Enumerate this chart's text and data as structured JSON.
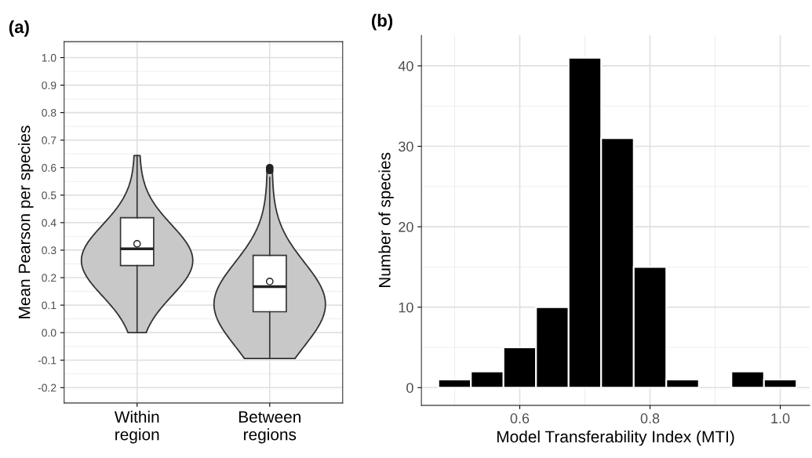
{
  "chart_data": [
    {
      "type": "box",
      "title": "(a)",
      "ylabel": "Mean Pearson per species",
      "categories": [
        "Within\nregion",
        "Between\nregions"
      ],
      "boxes": [
        {
          "low": 0.0,
          "q1": 0.244,
          "median": 0.305,
          "q3": 0.418,
          "high": 0.644,
          "mean": 0.323
        },
        {
          "low": -0.094,
          "q1": 0.076,
          "median": 0.167,
          "q3": 0.281,
          "high": 0.565,
          "mean": 0.186,
          "outliers": [
            0.6,
            0.59
          ]
        }
      ],
      "ylim": [
        -0.256,
        1.058
      ],
      "yticks": [
        -0.2,
        -0.1,
        {
          "value": 0.0,
          "label": "0.0"
        },
        0.1,
        0.2,
        0.3,
        0.4,
        0.5,
        0.6,
        0.7,
        0.8,
        0.9,
        {
          "value": 1.0,
          "label": "1.0"
        }
      ],
      "grid": true
    },
    {
      "type": "histogram",
      "title": "(b)",
      "xlabel": "Model Transferability Index (MTI)",
      "ylabel": "Number of species",
      "bins": [
        0.475,
        0.525,
        0.575,
        0.625,
        0.675,
        0.725,
        0.775,
        0.825,
        0.875,
        0.925,
        0.975,
        1.025
      ],
      "values": [
        1,
        2,
        5,
        10,
        41,
        31,
        15,
        1,
        0,
        2,
        1
      ],
      "color": "#000000",
      "xlim": [
        0.449,
        1.045
      ],
      "xticks": [
        0.6,
        0.8,
        {
          "value": 1.0,
          "label": "1.0"
        }
      ],
      "ylim": [
        -2.2,
        43.8
      ],
      "yticks": [
        0,
        10,
        20,
        30,
        40
      ],
      "grid": true
    }
  ]
}
